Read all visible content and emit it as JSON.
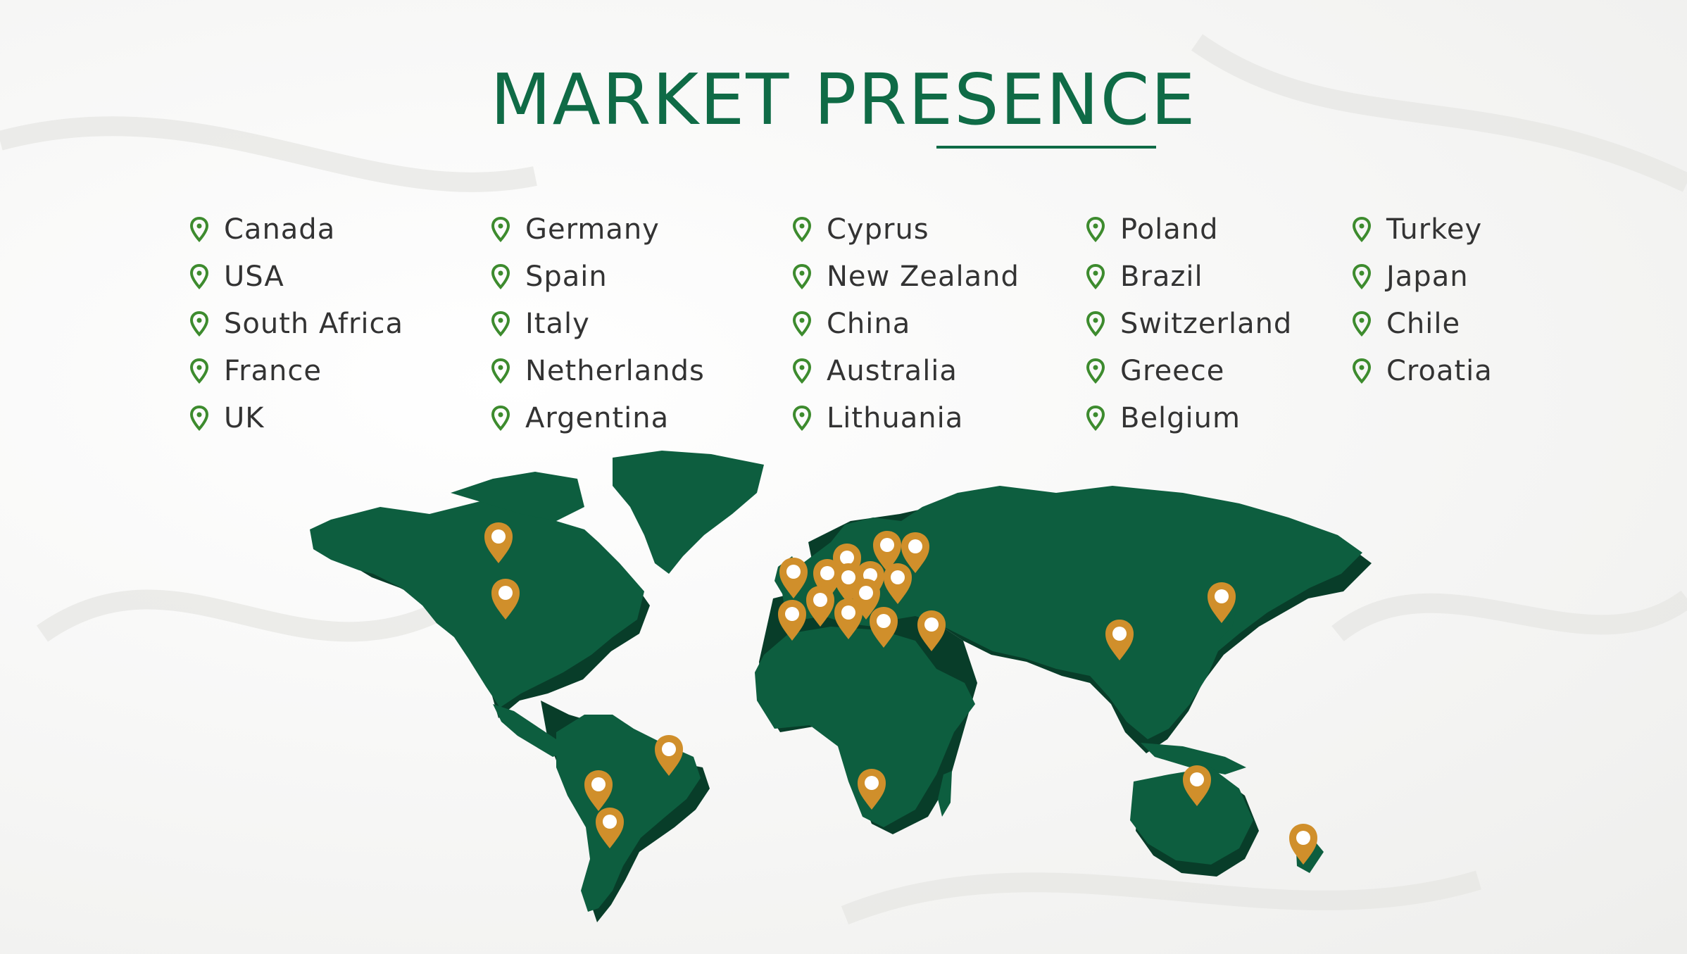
{
  "title": "MARKET PRESENCE",
  "columns": [
    [
      "Canada",
      "USA",
      "South Africa",
      "France",
      "UK"
    ],
    [
      "Germany",
      "Spain",
      "Italy",
      "Netherlands",
      "Argentina"
    ],
    [
      "Cyprus",
      "New Zealand",
      "China",
      "Australia",
      "Lithuania"
    ],
    [
      "Poland",
      "Brazil",
      "Switzerland",
      "Greece",
      "Belgium"
    ],
    [
      "Turkey",
      "Japan",
      "Chile",
      "Croatia"
    ]
  ],
  "colors": {
    "brand_green": "#0f6b46",
    "map_green": "#0d5e3f",
    "map_shadow": "#083d29",
    "marker_gold": "#d08f2b",
    "list_pin_green": "#3d8b2e"
  },
  "icons": {
    "list_marker": "map-pin-icon",
    "map_marker": "location-marker-icon"
  }
}
